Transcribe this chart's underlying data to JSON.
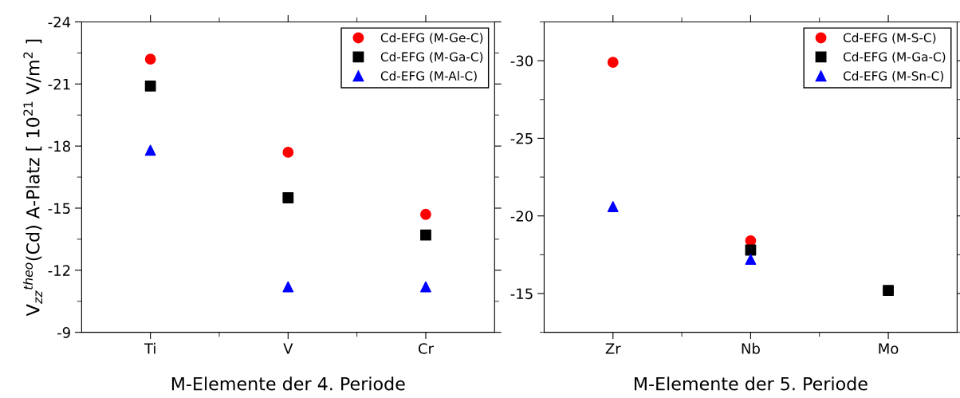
{
  "chart_data": [
    {
      "type": "scatter",
      "xlabel": "M-Elemente der 4. Periode",
      "ylabel": "V$_{zz}$$^{theo}$(Cd) A-Platz [ 10$^{21}$ V/m$^{2}$ ]",
      "categories": [
        "Ti",
        "V",
        "Cr"
      ],
      "ylim": [
        -9,
        -24
      ],
      "yticks": [
        -9,
        -12,
        -15,
        -18,
        -21,
        -24
      ],
      "legend": "top right",
      "grid": false,
      "series": [
        {
          "name": "Cd-EFG (M-Ge-C)",
          "color": "#ff0000",
          "marker": "circle",
          "values": [
            -22.2,
            -17.7,
            -14.7
          ]
        },
        {
          "name": "Cd-EFG (M-Ga-C)",
          "color": "#000000",
          "marker": "square",
          "values": [
            -20.9,
            -15.5,
            -13.7
          ]
        },
        {
          "name": "Cd-EFG (M-Al-C)",
          "color": "#0000ff",
          "marker": "triangle",
          "values": [
            -17.8,
            -11.2,
            -11.2
          ]
        }
      ]
    },
    {
      "type": "scatter",
      "xlabel": "M-Elemente der 5. Periode",
      "categories": [
        "Zr",
        "Nb",
        "Mo"
      ],
      "ylim": [
        -12.5,
        -32.5
      ],
      "yticks": [
        -15,
        -20,
        -25,
        -30
      ],
      "legend": "top right",
      "grid": false,
      "series": [
        {
          "name": "Cd-EFG (M-S-C)",
          "color": "#ff0000",
          "marker": "circle",
          "values": [
            -29.9,
            -18.4,
            null
          ]
        },
        {
          "name": "Cd-EFG (M-Ga-C)",
          "color": "#000000",
          "marker": "square",
          "values": [
            null,
            -17.8,
            -15.2
          ]
        },
        {
          "name": "Cd-EFG (M-Sn-C)",
          "color": "#0000ff",
          "marker": "triangle",
          "values": [
            -20.6,
            -17.2,
            null
          ]
        }
      ]
    }
  ]
}
